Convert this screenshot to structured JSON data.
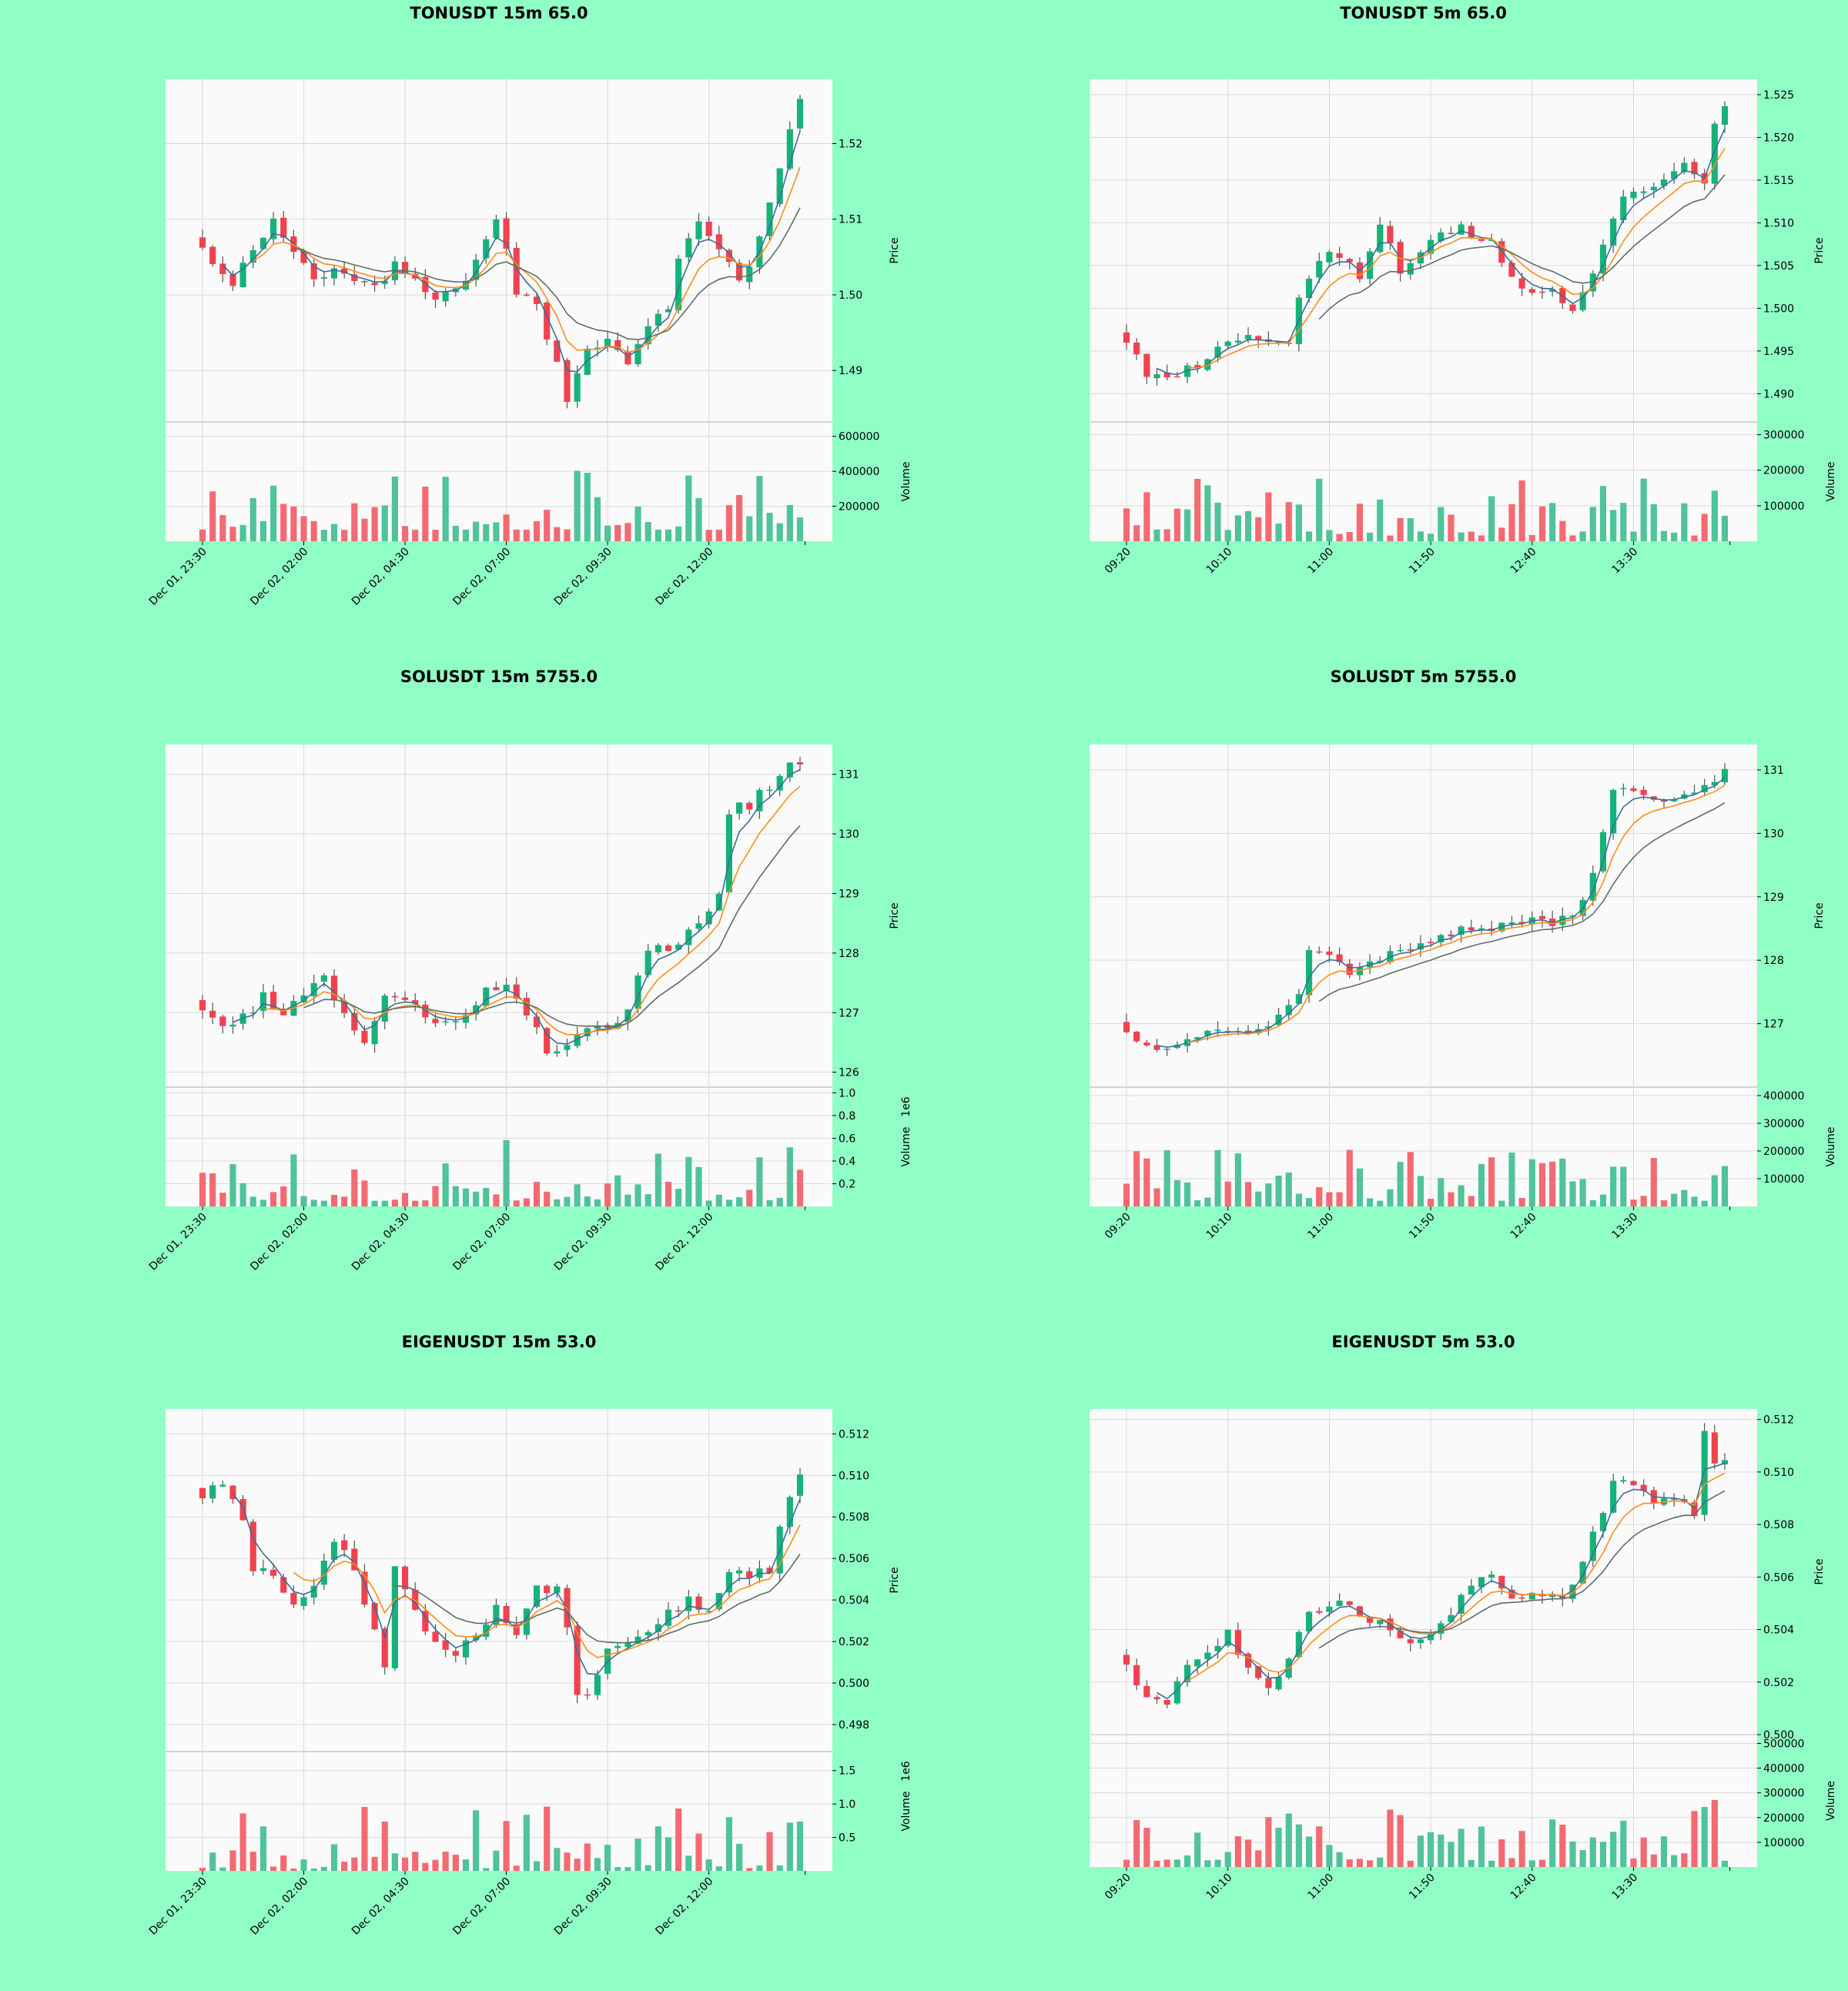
{
  "colors": {
    "background": "#90ffc5",
    "panel": "#fafafa",
    "grid": "#d9d9d9",
    "up": "#16b27a",
    "down": "#f0424e",
    "up_volume": "#4fc39a",
    "down_volume": "#f36a72",
    "ma_fast": "#3a6e96",
    "ma_mid": "#ff8c1a",
    "ma_slow": "#5c6f66"
  },
  "chart_data": [
    {
      "type": "candlestick",
      "title": "TONUSDT 15m 65.0",
      "ylabel": "Price",
      "volume_label": "Volume",
      "ylim": [
        1.4832,
        1.5285
      ],
      "price_ticks": [
        "1.49",
        "1.50",
        "1.51",
        "1.52"
      ],
      "price_tick_values": [
        1.49,
        1.5,
        1.51,
        1.52
      ],
      "volume_max": 650000,
      "volume_ticks": [
        "200000",
        "400000",
        "600000"
      ],
      "volume_tick_values": [
        200000,
        400000,
        600000
      ],
      "x_labels": [
        "Dec 01, 23:30",
        "Dec 02, 02:00",
        "Dec 02, 04:30",
        "Dec 02, 07:00",
        "Dec 02, 09:30",
        "Dec 02, 12:00"
      ],
      "x_label_index": [
        0,
        10,
        20,
        30,
        40,
        50
      ],
      "seed": 11,
      "count": 60,
      "volume_min_fraction": 0.1,
      "close_path": [
        [
          0,
          1.506
        ],
        [
          3,
          1.5015
        ],
        [
          5,
          1.506
        ],
        [
          7,
          1.5095
        ],
        [
          9,
          1.506
        ],
        [
          11,
          1.5025
        ],
        [
          14,
          1.5035
        ],
        [
          17,
          1.5005
        ],
        [
          19,
          1.5045
        ],
        [
          21,
          1.5025
        ],
        [
          23,
          1.4995
        ],
        [
          25,
          1.5005
        ],
        [
          27,
          1.5045
        ],
        [
          29,
          1.5105
        ],
        [
          31,
          1.5005
        ],
        [
          33,
          1.4985
        ],
        [
          35,
          1.4905
        ],
        [
          36,
          1.4865
        ],
        [
          38,
          1.4925
        ],
        [
          40,
          1.4945
        ],
        [
          42,
          1.4915
        ],
        [
          44,
          1.4955
        ],
        [
          46,
          1.4985
        ],
        [
          47,
          1.5055
        ],
        [
          49,
          1.5095
        ],
        [
          51,
          1.5065
        ],
        [
          53,
          1.5015
        ],
        [
          55,
          1.5075
        ],
        [
          57,
          1.5175
        ],
        [
          59,
          1.5265
        ]
      ],
      "ma_series": [
        {
          "start": 2,
          "smooth": 3,
          "color": "#3a6e96"
        },
        {
          "start": 5,
          "smooth": 6,
          "color": "#ff8c1a"
        },
        {
          "start": 9,
          "smooth": 12,
          "color": "#5c6f66"
        }
      ]
    },
    {
      "type": "candlestick",
      "title": "TONUSDT 5m 65.0",
      "ylabel": "Price",
      "volume_label": "Volume",
      "ylim": [
        1.4867,
        1.5268
      ],
      "price_ticks": [
        "1.490",
        "1.495",
        "1.500",
        "1.505",
        "1.510",
        "1.515",
        "1.520",
        "1.525"
      ],
      "price_tick_values": [
        1.49,
        1.495,
        1.5,
        1.505,
        1.51,
        1.515,
        1.52,
        1.525
      ],
      "volume_max": 320000,
      "volume_ticks": [
        "100000",
        "200000",
        "300000"
      ],
      "volume_tick_values": [
        100000,
        200000,
        300000
      ],
      "x_labels": [
        "09:20",
        "10:10",
        "11:00",
        "11:50",
        "12:40",
        "13:30"
      ],
      "x_label_index": [
        0,
        10,
        20,
        30,
        40,
        50
      ],
      "seed": 23,
      "count": 60,
      "volume_min_fraction": 0.05,
      "close_path": [
        [
          0,
          1.4965
        ],
        [
          2,
          1.4925
        ],
        [
          4,
          1.4915
        ],
        [
          7,
          1.4935
        ],
        [
          9,
          1.4955
        ],
        [
          12,
          1.4965
        ],
        [
          16,
          1.4955
        ],
        [
          17,
          1.5015
        ],
        [
          19,
          1.5055
        ],
        [
          21,
          1.5065
        ],
        [
          23,
          1.5035
        ],
        [
          25,
          1.5095
        ],
        [
          27,
          1.5045
        ],
        [
          29,
          1.5065
        ],
        [
          31,
          1.5085
        ],
        [
          33,
          1.5095
        ],
        [
          36,
          1.5075
        ],
        [
          38,
          1.5035
        ],
        [
          40,
          1.5015
        ],
        [
          42,
          1.5025
        ],
        [
          44,
          1.4995
        ],
        [
          46,
          1.5035
        ],
        [
          47,
          1.5075
        ],
        [
          49,
          1.5125
        ],
        [
          51,
          1.5135
        ],
        [
          53,
          1.5155
        ],
        [
          55,
          1.5175
        ],
        [
          57,
          1.5145
        ],
        [
          58,
          1.5215
        ],
        [
          60,
          1.5265
        ]
      ],
      "ma_series": [
        {
          "start": 3,
          "smooth": 3,
          "color": "#3a6e96"
        },
        {
          "start": 6,
          "smooth": 6,
          "color": "#ff8c1a"
        },
        {
          "start": 19,
          "smooth": 12,
          "color": "#5c6f66"
        }
      ]
    },
    {
      "type": "candlestick",
      "title": "SOLUSDT 15m 5755.0",
      "ylabel": "Price",
      "volume_label": "Volume",
      "volume_exponent": "1e6",
      "ylim": [
        125.75,
        131.5
      ],
      "price_ticks": [
        "126",
        "127",
        "128",
        "129",
        "130",
        "131"
      ],
      "price_tick_values": [
        126,
        127,
        128,
        129,
        130,
        131
      ],
      "volume_max": 1000000,
      "volume_ticks": [
        "0.2",
        "0.4",
        "0.6",
        "0.8",
        "1.0"
      ],
      "volume_tick_values": [
        200000,
        400000,
        600000,
        800000,
        1000000
      ],
      "x_labels": [
        "Dec 01, 23:30",
        "Dec 02, 02:00",
        "Dec 02, 04:30",
        "Dec 02, 07:00",
        "Dec 02, 09:30",
        "Dec 02, 12:00"
      ],
      "x_label_index": [
        0,
        10,
        20,
        30,
        40,
        50
      ],
      "seed": 37,
      "count": 60,
      "volume_min_fraction": 0.05,
      "close_path": [
        [
          0,
          127.0
        ],
        [
          2,
          126.7
        ],
        [
          4,
          126.9
        ],
        [
          6,
          127.3
        ],
        [
          8,
          127.0
        ],
        [
          10,
          127.3
        ],
        [
          12,
          127.6
        ],
        [
          14,
          127.0
        ],
        [
          16,
          126.4
        ],
        [
          18,
          127.3
        ],
        [
          20,
          127.3
        ],
        [
          22,
          127.0
        ],
        [
          24,
          126.8
        ],
        [
          26,
          126.9
        ],
        [
          28,
          127.4
        ],
        [
          30,
          127.5
        ],
        [
          32,
          127.0
        ],
        [
          34,
          126.4
        ],
        [
          36,
          126.4
        ],
        [
          38,
          126.8
        ],
        [
          40,
          126.8
        ],
        [
          42,
          127.0
        ],
        [
          44,
          128.1
        ],
        [
          46,
          128.0
        ],
        [
          48,
          128.3
        ],
        [
          50,
          128.6
        ],
        [
          51,
          128.9
        ],
        [
          52,
          130.4
        ],
        [
          54,
          130.5
        ],
        [
          56,
          130.8
        ],
        [
          58,
          131.25
        ]
      ],
      "ma_series": [
        {
          "start": 3,
          "smooth": 3,
          "color": "#3a6e96"
        },
        {
          "start": 6,
          "smooth": 6,
          "color": "#ff8c1a"
        },
        {
          "start": 10,
          "smooth": 12,
          "color": "#5c6f66"
        }
      ]
    },
    {
      "type": "candlestick",
      "title": "SOLUSDT 5m 5755.0",
      "ylabel": "Price",
      "volume_label": "Volume",
      "ylim": [
        126.0,
        131.4
      ],
      "price_ticks": [
        "127",
        "128",
        "129",
        "130",
        "131"
      ],
      "price_tick_values": [
        127,
        128,
        129,
        130,
        131
      ],
      "volume_max": 410000,
      "volume_ticks": [
        "100000",
        "200000",
        "300000",
        "400000"
      ],
      "volume_tick_values": [
        100000,
        200000,
        300000,
        400000
      ],
      "x_labels": [
        "09:20",
        "10:10",
        "11:00",
        "11:50",
        "12:40",
        "13:30"
      ],
      "x_label_index": [
        0,
        10,
        20,
        30,
        40,
        50
      ],
      "seed": 41,
      "count": 60,
      "volume_min_fraction": 0.05,
      "close_path": [
        [
          0,
          126.8
        ],
        [
          2,
          126.6
        ],
        [
          4,
          126.65
        ],
        [
          6,
          126.75
        ],
        [
          9,
          126.85
        ],
        [
          12,
          126.9
        ],
        [
          14,
          127.0
        ],
        [
          16,
          127.2
        ],
        [
          17,
          127.5
        ],
        [
          18,
          128.15
        ],
        [
          20,
          128.05
        ],
        [
          22,
          127.8
        ],
        [
          24,
          128.0
        ],
        [
          26,
          128.1
        ],
        [
          28,
          128.2
        ],
        [
          30,
          128.3
        ],
        [
          32,
          128.45
        ],
        [
          34,
          128.5
        ],
        [
          36,
          128.55
        ],
        [
          38,
          128.6
        ],
        [
          40,
          128.7
        ],
        [
          42,
          128.6
        ],
        [
          44,
          128.7
        ],
        [
          46,
          129.3
        ],
        [
          47,
          130.0
        ],
        [
          48,
          130.7
        ],
        [
          50,
          130.6
        ],
        [
          52,
          130.5
        ],
        [
          54,
          130.55
        ],
        [
          56,
          130.7
        ],
        [
          58,
          130.85
        ],
        [
          60,
          131.2
        ]
      ],
      "ma_series": [
        {
          "start": 3,
          "smooth": 3,
          "color": "#3a6e96"
        },
        {
          "start": 6,
          "smooth": 6,
          "color": "#ff8c1a"
        },
        {
          "start": 19,
          "smooth": 12,
          "color": "#5c6f66"
        }
      ]
    },
    {
      "type": "candlestick",
      "title": "EIGENUSDT 15m 53.0",
      "ylabel": "Price",
      "volume_label": "Volume",
      "volume_exponent": "1e6",
      "ylim": [
        0.4967,
        0.5132
      ],
      "price_ticks": [
        "0.498",
        "0.500",
        "0.502",
        "0.504",
        "0.506",
        "0.508",
        "0.510",
        "0.512"
      ],
      "price_tick_values": [
        0.498,
        0.5,
        0.502,
        0.504,
        0.506,
        0.508,
        0.51,
        0.512
      ],
      "volume_max": 1700000,
      "volume_ticks": [
        "0.5",
        "1.0",
        "1.5"
      ],
      "volume_tick_values": [
        500000,
        1000000,
        1500000
      ],
      "x_labels": [
        "Dec 01, 23:30",
        "Dec 02, 02:00",
        "Dec 02, 04:30",
        "Dec 02, 07:00",
        "Dec 02, 09:30",
        "Dec 02, 12:00"
      ],
      "x_label_index": [
        0,
        10,
        20,
        30,
        40,
        50
      ],
      "seed": 53,
      "count": 60,
      "volume_min_fraction": 0.02,
      "close_path": [
        [
          0,
          0.509
        ],
        [
          2,
          0.5095
        ],
        [
          4,
          0.508
        ],
        [
          5,
          0.5055
        ],
        [
          7,
          0.505
        ],
        [
          9,
          0.5035
        ],
        [
          11,
          0.5045
        ],
        [
          13,
          0.507
        ],
        [
          15,
          0.5055
        ],
        [
          16,
          0.504
        ],
        [
          17,
          0.5025
        ],
        [
          18,
          0.5005
        ],
        [
          19,
          0.5055
        ],
        [
          21,
          0.5035
        ],
        [
          23,
          0.502
        ],
        [
          25,
          0.5015
        ],
        [
          27,
          0.5025
        ],
        [
          29,
          0.5035
        ],
        [
          31,
          0.5025
        ],
        [
          33,
          0.5045
        ],
        [
          35,
          0.5045
        ],
        [
          36,
          0.5025
        ],
        [
          37,
          0.4995
        ],
        [
          38,
          0.4995
        ],
        [
          40,
          0.5015
        ],
        [
          42,
          0.502
        ],
        [
          44,
          0.5025
        ],
        [
          46,
          0.5035
        ],
        [
          48,
          0.504
        ],
        [
          50,
          0.5035
        ],
        [
          52,
          0.5055
        ],
        [
          54,
          0.505
        ],
        [
          56,
          0.5055
        ],
        [
          58,
          0.509
        ],
        [
          60,
          0.511
        ]
      ],
      "ma_series": [
        {
          "start": 3,
          "smooth": 3,
          "color": "#3a6e96"
        },
        {
          "start": 9,
          "smooth": 6,
          "color": "#ff8c1a"
        },
        {
          "start": 19,
          "smooth": 12,
          "color": "#5c6f66"
        }
      ]
    },
    {
      "type": "candlestick",
      "title": "EIGENUSDT 5m 53.0",
      "ylabel": "Price",
      "volume_label": "Volume",
      "ylim": [
        0.5,
        0.5124
      ],
      "price_ticks": [
        "0.500",
        "0.502",
        "0.504",
        "0.506",
        "0.508",
        "0.510",
        "0.512"
      ],
      "price_tick_values": [
        0.5,
        0.502,
        0.504,
        0.506,
        0.508,
        0.51,
        0.512
      ],
      "volume_max": 510000,
      "volume_ticks": [
        "100000",
        "200000",
        "300000",
        "400000",
        "500000"
      ],
      "volume_tick_values": [
        100000,
        200000,
        300000,
        400000,
        500000
      ],
      "x_labels": [
        "09:20",
        "10:10",
        "11:00",
        "11:50",
        "12:40",
        "13:30"
      ],
      "x_label_index": [
        0,
        10,
        20,
        30,
        40,
        50
      ],
      "seed": 67,
      "count": 60,
      "volume_min_fraction": 0.05,
      "close_path": [
        [
          0,
          0.5025
        ],
        [
          2,
          0.5015
        ],
        [
          4,
          0.5012
        ],
        [
          6,
          0.5025
        ],
        [
          8,
          0.503
        ],
        [
          10,
          0.504
        ],
        [
          12,
          0.5025
        ],
        [
          14,
          0.5017
        ],
        [
          16,
          0.503
        ],
        [
          18,
          0.5045
        ],
        [
          20,
          0.5048
        ],
        [
          22,
          0.505
        ],
        [
          24,
          0.5043
        ],
        [
          26,
          0.504
        ],
        [
          28,
          0.5035
        ],
        [
          30,
          0.5037
        ],
        [
          32,
          0.5045
        ],
        [
          34,
          0.5058
        ],
        [
          36,
          0.506
        ],
        [
          38,
          0.505
        ],
        [
          40,
          0.5055
        ],
        [
          42,
          0.5052
        ],
        [
          44,
          0.5055
        ],
        [
          46,
          0.5078
        ],
        [
          48,
          0.5095
        ],
        [
          50,
          0.5095
        ],
        [
          52,
          0.509
        ],
        [
          54,
          0.509
        ],
        [
          56,
          0.5085
        ],
        [
          57,
          0.5115
        ],
        [
          58,
          0.5105
        ],
        [
          60,
          0.5105
        ]
      ],
      "ma_series": [
        {
          "start": 3,
          "smooth": 3,
          "color": "#3a6e96"
        },
        {
          "start": 6,
          "smooth": 6,
          "color": "#ff8c1a"
        },
        {
          "start": 19,
          "smooth": 12,
          "color": "#5c6f66"
        }
      ]
    }
  ]
}
